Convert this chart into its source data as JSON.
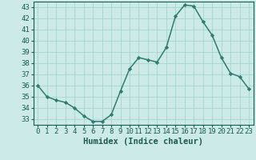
{
  "x": [
    0,
    1,
    2,
    3,
    4,
    5,
    6,
    7,
    8,
    9,
    10,
    11,
    12,
    13,
    14,
    15,
    16,
    17,
    18,
    19,
    20,
    21,
    22,
    23
  ],
  "y": [
    36,
    35,
    34.7,
    34.5,
    34,
    33.3,
    32.8,
    32.8,
    33.4,
    35.5,
    37.5,
    38.5,
    38.3,
    38.1,
    39.4,
    42.2,
    43.2,
    43.1,
    41.7,
    40.5,
    38.5,
    37.1,
    36.8,
    35.7
  ],
  "line_color": "#2e7d6e",
  "marker": "D",
  "marker_size": 2.2,
  "bg_color": "#cceae8",
  "grid_color": "#a8d4d0",
  "xlabel": "Humidex (Indice chaleur)",
  "xlim": [
    -0.5,
    23.5
  ],
  "ylim": [
    32.5,
    43.5
  ],
  "yticks": [
    33,
    34,
    35,
    36,
    37,
    38,
    39,
    40,
    41,
    42,
    43
  ],
  "xticks": [
    0,
    1,
    2,
    3,
    4,
    5,
    6,
    7,
    8,
    9,
    10,
    11,
    12,
    13,
    14,
    15,
    16,
    17,
    18,
    19,
    20,
    21,
    22,
    23
  ],
  "tick_color": "#1a5c50",
  "label_fontsize": 6.5,
  "xlabel_fontsize": 7.5,
  "line_width": 1.1
}
